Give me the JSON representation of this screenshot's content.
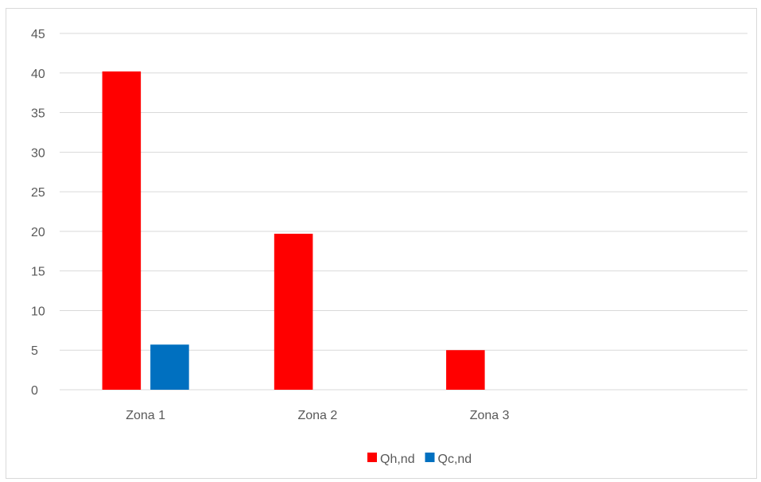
{
  "chart_data": {
    "type": "bar",
    "categories": [
      "Zona 1",
      "Zona 2",
      "Zona 3",
      ""
    ],
    "series": [
      {
        "name": "Qh,nd",
        "color": "#ff0000",
        "values": [
          40.2,
          19.7,
          5.0,
          null
        ]
      },
      {
        "name": "Qc,nd",
        "color": "#0070c0",
        "values": [
          5.7,
          null,
          null,
          null
        ]
      }
    ],
    "title": "",
    "xlabel": "",
    "ylabel": "",
    "ylim": [
      0,
      45
    ],
    "yticks": [
      0,
      5,
      10,
      15,
      20,
      25,
      30,
      35,
      40,
      45
    ],
    "grid": true,
    "legend": "bottom"
  }
}
